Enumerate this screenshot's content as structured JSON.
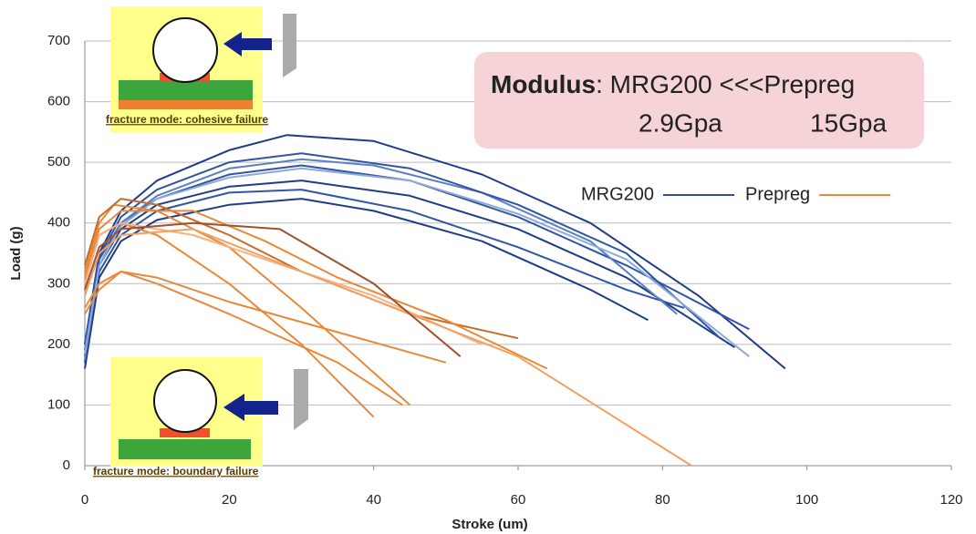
{
  "chart_data": {
    "type": "line",
    "x_label": "Stroke (um)",
    "y_label": "Load (g)",
    "xlim": [
      0,
      120
    ],
    "xticks": [
      0,
      20,
      40,
      60,
      80,
      100,
      120
    ],
    "ylim": [
      0,
      700
    ],
    "yticks": [
      0,
      100,
      200,
      300,
      400,
      500,
      600,
      700
    ],
    "grid": true,
    "series": [
      {
        "name": "MRG200",
        "color": "#2f4f9e",
        "curves": [
          {
            "color": "#1f3c88",
            "x": [
              0,
              2,
              5,
              10,
              20,
              28,
              40,
              55,
              70,
              85,
              97
            ],
            "values": [
              200,
              350,
              420,
              470,
              520,
              545,
              535,
              480,
              400,
              280,
              160
            ]
          },
          {
            "color": "#2f55a4",
            "x": [
              0,
              2,
              5,
              10,
              20,
              30,
              45,
              60,
              75,
              92
            ],
            "values": [
              180,
              340,
              400,
              440,
              480,
              495,
              470,
              410,
              330,
              225
            ]
          },
          {
            "color": "#1f3c88",
            "x": [
              0,
              2,
              5,
              10,
              20,
              30,
              45,
              60,
              75,
              90
            ],
            "values": [
              190,
              330,
              390,
              430,
              460,
              470,
              445,
              390,
              310,
              195
            ]
          },
          {
            "color": "#2f55a4",
            "x": [
              0,
              2,
              5,
              10,
              20,
              30,
              45,
              60,
              75,
              83
            ],
            "values": [
              170,
              320,
              380,
              420,
              450,
              455,
              420,
              360,
              290,
              260
            ]
          },
          {
            "color": "#1f3c88",
            "x": [
              0,
              2,
              5,
              10,
              20,
              30,
              40,
              55,
              70,
              78
            ],
            "values": [
              160,
              310,
              370,
              405,
              430,
              440,
              420,
              370,
              290,
              240
            ]
          },
          {
            "color": "#5b7fc4",
            "x": [
              0,
              2,
              5,
              10,
              20,
              30,
              40,
              55,
              70,
              82
            ],
            "values": [
              175,
              330,
              400,
              445,
              490,
              505,
              495,
              450,
              370,
              250
            ]
          },
          {
            "color": "#2f55a4",
            "x": [
              0,
              2,
              5,
              10,
              20,
              30,
              45,
              60,
              75,
              88
            ],
            "values": [
              200,
              345,
              410,
              455,
              500,
              515,
              490,
              430,
              350,
              210
            ]
          },
          {
            "color": "#8fa9d8",
            "x": [
              0,
              2,
              5,
              10,
              20,
              30,
              45,
              60,
              75,
              92
            ],
            "values": [
              185,
              330,
              395,
              440,
              475,
              490,
              470,
              415,
              340,
              180
            ]
          }
        ]
      },
      {
        "name": "Prepreg",
        "color": "#e8893a",
        "curves": [
          {
            "color": "#e8893a",
            "x": [
              0,
              2,
              5,
              10,
              20,
              30,
              40
            ],
            "values": [
              300,
              380,
              400,
              380,
              300,
              200,
              80
            ]
          },
          {
            "color": "#e8893a",
            "x": [
              0,
              2,
              4,
              10,
              20,
              30,
              45
            ],
            "values": [
              320,
              400,
              430,
              420,
              360,
              260,
              100
            ]
          },
          {
            "color": "#c86a28",
            "x": [
              0,
              2,
              5,
              10,
              20,
              30,
              45,
              60
            ],
            "values": [
              330,
              410,
              440,
              430,
              380,
              320,
              250,
              210
            ]
          },
          {
            "color": "#e8893a",
            "x": [
              0,
              2,
              5,
              15,
              25,
              35,
              50,
              64
            ],
            "values": [
              310,
              390,
              420,
              420,
              370,
              310,
              240,
              160
            ]
          },
          {
            "color": "#f4b183",
            "x": [
              0,
              2,
              5,
              15,
              25,
              40,
              55
            ],
            "values": [
              300,
              380,
              400,
              380,
              340,
              280,
              200
            ]
          },
          {
            "color": "#f0a060",
            "x": [
              0,
              2,
              5,
              15,
              30,
              45,
              60,
              84
            ],
            "values": [
              280,
              350,
              380,
              390,
              320,
              250,
              180,
              0
            ]
          },
          {
            "color": "#a0522d",
            "x": [
              0,
              2,
              5,
              15,
              27,
              40,
              52
            ],
            "values": [
              290,
              360,
              390,
              400,
              390,
              300,
              180
            ]
          },
          {
            "color": "#e8893a",
            "x": [
              0,
              2,
              5,
              10,
              20,
              35,
              50
            ],
            "values": [
              260,
              300,
              320,
              310,
              270,
              220,
              170
            ]
          },
          {
            "color": "#e8893a",
            "x": [
              0,
              2,
              5,
              10,
              20,
              35,
              44
            ],
            "values": [
              250,
              290,
              320,
              300,
              250,
              170,
              100
            ]
          }
        ]
      }
    ],
    "annotations": {
      "modulus_label": "Modulus",
      "modulus_text": ": MRG200 <<<Prepreg",
      "mrg200_modulus": "2.9Gpa",
      "prepreg_modulus": "15Gpa",
      "inset_top": "fracture mode: cohesive failure",
      "inset_bottom": "fracture mode: boundary failure"
    }
  }
}
